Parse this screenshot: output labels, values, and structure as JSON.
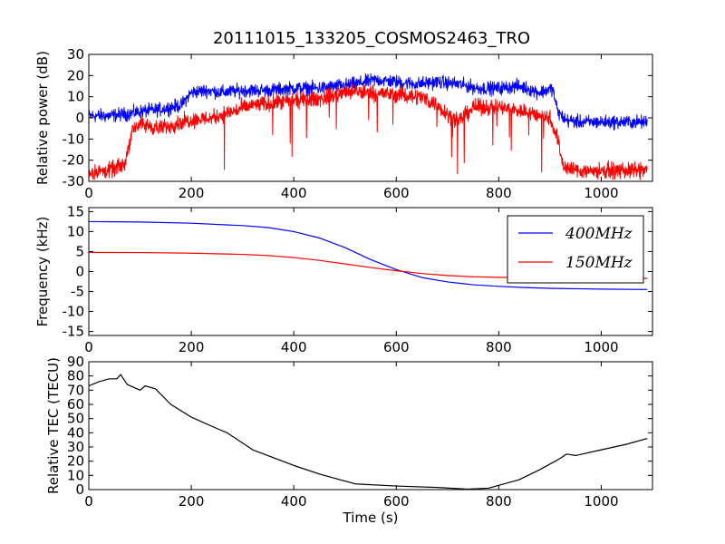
{
  "figure_title": "20111015_133205_COSMOS2463_TRO",
  "chart_data": [
    {
      "type": "line",
      "panel": "power",
      "xlabel": "",
      "ylabel": "Relative power (dB)",
      "xlim": [
        0,
        1100
      ],
      "ylim": [
        -30,
        30
      ],
      "xticks": [
        0,
        200,
        400,
        600,
        800,
        1000
      ],
      "yticks": [
        -30,
        -20,
        -10,
        0,
        10,
        20,
        30
      ],
      "grid": false,
      "series": [
        {
          "color": "#0000ff",
          "noise": 2.2,
          "x": [
            0,
            40,
            80,
            100,
            140,
            180,
            200,
            230,
            260,
            300,
            350,
            400,
            450,
            520,
            560,
            600,
            640,
            680,
            720,
            760,
            800,
            840,
            880,
            905,
            915,
            930,
            960,
            1000,
            1090
          ],
          "y": [
            1,
            1,
            2,
            3,
            4,
            6,
            12,
            13,
            12,
            13,
            13,
            14,
            14,
            16,
            18,
            17,
            16,
            17,
            16,
            14,
            14,
            15,
            12,
            14,
            3,
            -1,
            -2,
            -2,
            -2
          ]
        },
        {
          "color": "#ff0000",
          "noise": 2.6,
          "x": [
            0,
            40,
            70,
            85,
            100,
            140,
            180,
            200,
            240,
            280,
            320,
            360,
            400,
            450,
            500,
            550,
            600,
            650,
            680,
            700,
            720,
            750,
            800,
            850,
            900,
            915,
            925,
            935,
            960,
            1000,
            1090
          ],
          "y": [
            -26,
            -25,
            -22,
            -5,
            -3,
            -5,
            -2,
            -1,
            0,
            3,
            6,
            7,
            8,
            9,
            12,
            12,
            11,
            10,
            6,
            2,
            -2,
            5,
            5,
            3,
            0,
            -10,
            -22,
            -24,
            -25,
            -25,
            -25
          ]
        }
      ]
    },
    {
      "type": "line",
      "panel": "frequency",
      "xlabel": "",
      "ylabel": "Frequency (kHz)",
      "xlim": [
        0,
        1100
      ],
      "ylim": [
        -16,
        16
      ],
      "xticks": [
        0,
        200,
        400,
        600,
        800,
        1000
      ],
      "yticks": [
        -15,
        -10,
        -5,
        0,
        5,
        10,
        15
      ],
      "grid": false,
      "legend_position": "top-right",
      "series": [
        {
          "name": "400MHz",
          "color": "#0000ff",
          "x": [
            0,
            100,
            200,
            300,
            350,
            400,
            450,
            500,
            550,
            600,
            650,
            700,
            750,
            800,
            850,
            900,
            1000,
            1090
          ],
          "y": [
            12.5,
            12.4,
            12.1,
            11.5,
            11.0,
            10.0,
            8.4,
            6.0,
            3.0,
            0.5,
            -1.5,
            -2.6,
            -3.3,
            -3.7,
            -4.0,
            -4.2,
            -4.4,
            -4.5
          ]
        },
        {
          "name": "150MHz",
          "color": "#ff0000",
          "x": [
            0,
            100,
            200,
            300,
            350,
            400,
            450,
            500,
            550,
            600,
            650,
            700,
            750,
            800,
            850,
            900,
            1000,
            1090
          ],
          "y": [
            4.8,
            4.75,
            4.6,
            4.3,
            4.0,
            3.5,
            2.8,
            1.9,
            1.0,
            0.2,
            -0.5,
            -1.0,
            -1.3,
            -1.45,
            -1.55,
            -1.6,
            -1.65,
            -1.7
          ]
        }
      ]
    },
    {
      "type": "line",
      "panel": "tec",
      "xlabel": "Time (s)",
      "ylabel": "Relative TEC (TECU)",
      "xlim": [
        0,
        1100
      ],
      "ylim": [
        0,
        90
      ],
      "xticks": [
        0,
        200,
        400,
        600,
        800,
        1000
      ],
      "yticks": [
        0,
        10,
        20,
        30,
        40,
        50,
        60,
        70,
        80,
        90
      ],
      "grid": false,
      "series": [
        {
          "color": "#000000",
          "x": [
            0,
            20,
            40,
            55,
            62,
            75,
            100,
            110,
            130,
            160,
            200,
            250,
            270,
            320,
            400,
            450,
            520,
            600,
            680,
            740,
            780,
            800,
            840,
            880,
            920,
            932,
            950,
            1000,
            1050,
            1090
          ],
          "y": [
            73,
            76,
            78,
            78,
            81,
            74,
            70,
            73,
            71,
            60,
            51,
            43,
            40,
            28,
            17,
            11,
            4,
            2.5,
            1.5,
            0.3,
            1,
            3,
            7,
            14,
            22,
            25,
            24,
            28,
            32,
            36
          ]
        }
      ]
    }
  ]
}
